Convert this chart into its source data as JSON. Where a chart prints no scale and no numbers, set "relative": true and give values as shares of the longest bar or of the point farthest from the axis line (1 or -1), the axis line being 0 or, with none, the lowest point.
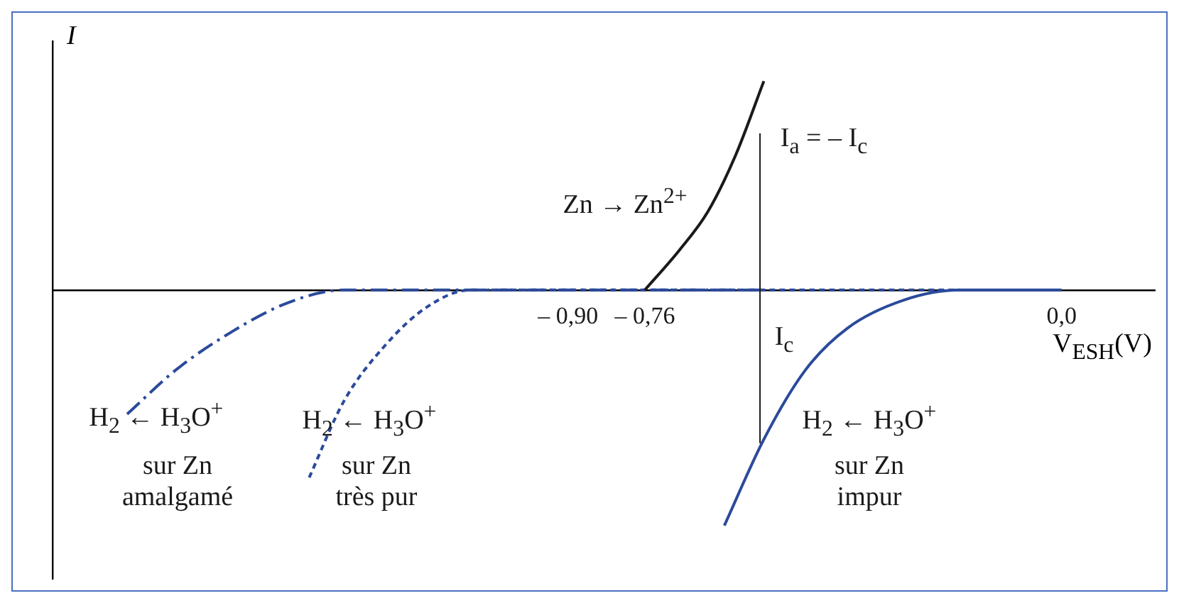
{
  "chart_data": {
    "type": "line",
    "relative": true,
    "xlabel": "V$_{ESH}$(V)",
    "ylabel": "I",
    "xlim": [
      -1.84,
      0.17
    ],
    "xticks": [
      {
        "value": -0.9,
        "label": "– 0,90"
      },
      {
        "value": -0.76,
        "label": "– 0,76"
      },
      {
        "value": 0,
        "label": "0,0"
      }
    ],
    "legend": false,
    "grid": false,
    "marker": "none",
    "series": [
      {
        "color": "#1a1a1a",
        "line_style": "solid",
        "x": [
          -0.76,
          -0.696,
          -0.645,
          -0.594,
          -0.543
        ],
        "values": [
          0,
          0.172,
          0.333,
          0.575,
          0.887
        ]
      },
      {
        "color": "#2b4a9b",
        "line_style": "solid",
        "x": [
          -0.615,
          -0.543,
          -0.467,
          -0.39,
          -0.288,
          -0.186,
          0
        ],
        "values": [
          -1,
          -0.634,
          -0.339,
          -0.161,
          -0.043,
          0,
          0
        ]
      },
      {
        "color": "#2b4a9b",
        "line_style": "dotted",
        "x": [
          -1.372,
          -1.309,
          -1.232,
          -1.156,
          -1.079,
          -0.186
        ],
        "values": [
          -0.796,
          -0.473,
          -0.231,
          -0.07,
          0,
          0
        ]
      },
      {
        "color": "#2b4a9b",
        "line_style": "dashed",
        "x": [
          -1.704,
          -1.615,
          -1.513,
          -1.411,
          -1.309,
          -0.55
        ],
        "values": [
          -0.527,
          -0.339,
          -0.177,
          -0.054,
          0,
          0
        ]
      }
    ],
    "ref_lines": [
      {
        "axis": "x",
        "value": -0.55,
        "color": "#1a1a1a"
      }
    ],
    "annotations": [
      "I$_{a}$ = – I$_{c}$",
      "Zn → Zn$^{2+}$",
      "I$_{c}$",
      "H$_{2}$ ← H$_{3}$O$^{+}$",
      "H$_{2}$ ← H$_{3}$O$^{+}$",
      "H$_{2}$ ← H$_{3}$O$^{+}$",
      "sur Zn\namalgamé",
      "sur Zn\ntrès pur",
      "sur Zn\nimpur"
    ]
  }
}
